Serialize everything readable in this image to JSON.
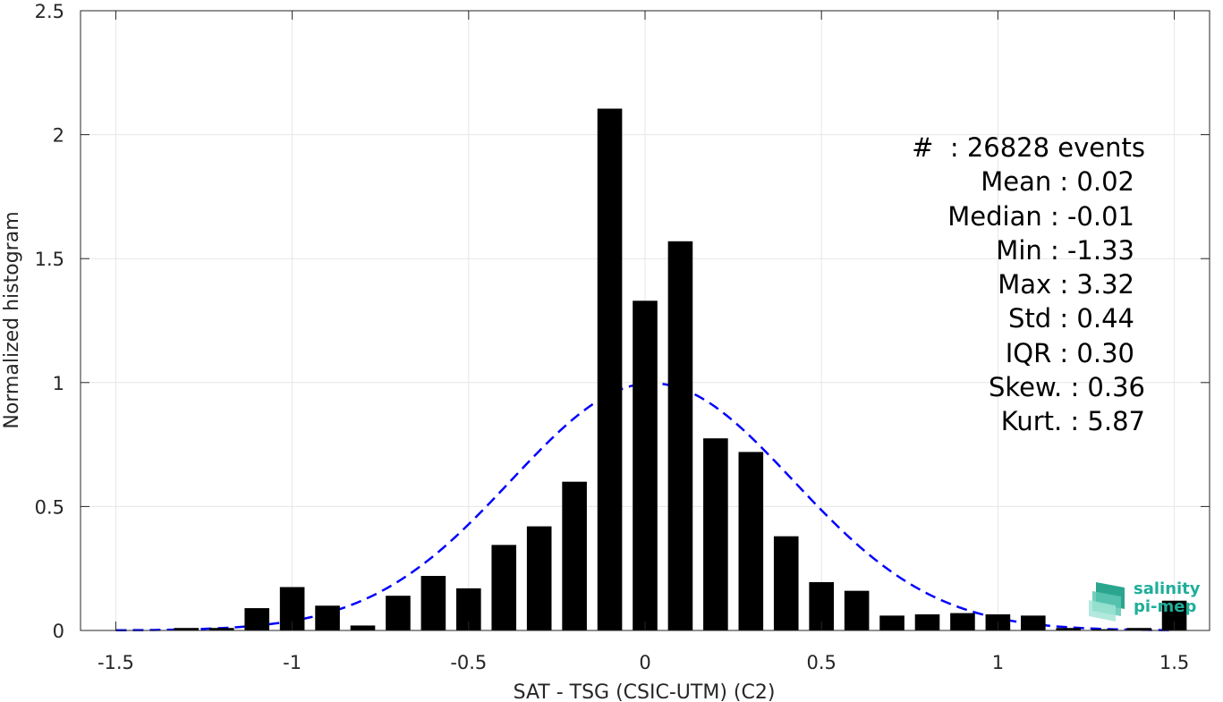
{
  "chart_data": {
    "type": "bar",
    "xlabel": "SAT - TSG (CSIC-UTM) (C2)",
    "ylabel": "Normalized histogram",
    "xlim": [
      -1.6,
      1.6
    ],
    "ylim": [
      0,
      2.5
    ],
    "x_ticks": [
      "-1.5",
      "-1",
      "-0.5",
      "0",
      "0.5",
      "1",
      "1.5"
    ],
    "x_tick_values": [
      -1.5,
      -1,
      -0.5,
      0,
      0.5,
      1,
      1.5
    ],
    "y_ticks": [
      "0",
      "0.5",
      "1",
      "1.5",
      "2",
      "2.5"
    ],
    "y_tick_values": [
      0,
      0.5,
      1,
      1.5,
      2,
      2.5
    ],
    "grid": true,
    "bar_color": "#000000",
    "fit_color": "#0000ff",
    "bin_width": 0.1,
    "bins": [
      -1.5,
      -1.4,
      -1.3,
      -1.2,
      -1.1,
      -1.0,
      -0.9,
      -0.8,
      -0.7,
      -0.6,
      -0.5,
      -0.4,
      -0.3,
      -0.2,
      -0.1,
      0.0,
      0.1,
      0.2,
      0.3,
      0.4,
      0.5,
      0.6,
      0.7,
      0.8,
      0.9,
      1.0,
      1.1,
      1.2,
      1.3,
      1.4,
      1.5
    ],
    "values": [
      0.0,
      0.0,
      0.01,
      0.01,
      0.09,
      0.175,
      0.1,
      0.02,
      0.14,
      0.22,
      0.17,
      0.345,
      0.42,
      0.6,
      2.105,
      1.33,
      1.57,
      0.775,
      0.72,
      0.38,
      0.195,
      0.16,
      0.06,
      0.065,
      0.07,
      0.065,
      0.06,
      0.01,
      0.005,
      0.01,
      0.12
    ],
    "fit": {
      "type": "normal",
      "mean": 0.02,
      "std": 0.4,
      "peak": 0.997
    },
    "annotation": [
      "#  : 26828 events",
      "Mean : 0.02",
      "Median : -0.01",
      "Min : -1.33",
      "Max : 3.32",
      "Std : 0.44",
      "IQR : 0.30",
      "Skew. : 0.36",
      "Kurt. : 5.87"
    ]
  },
  "logo": {
    "line1": "salinity",
    "line2": "pi-mep",
    "color": "#1fae9a"
  }
}
